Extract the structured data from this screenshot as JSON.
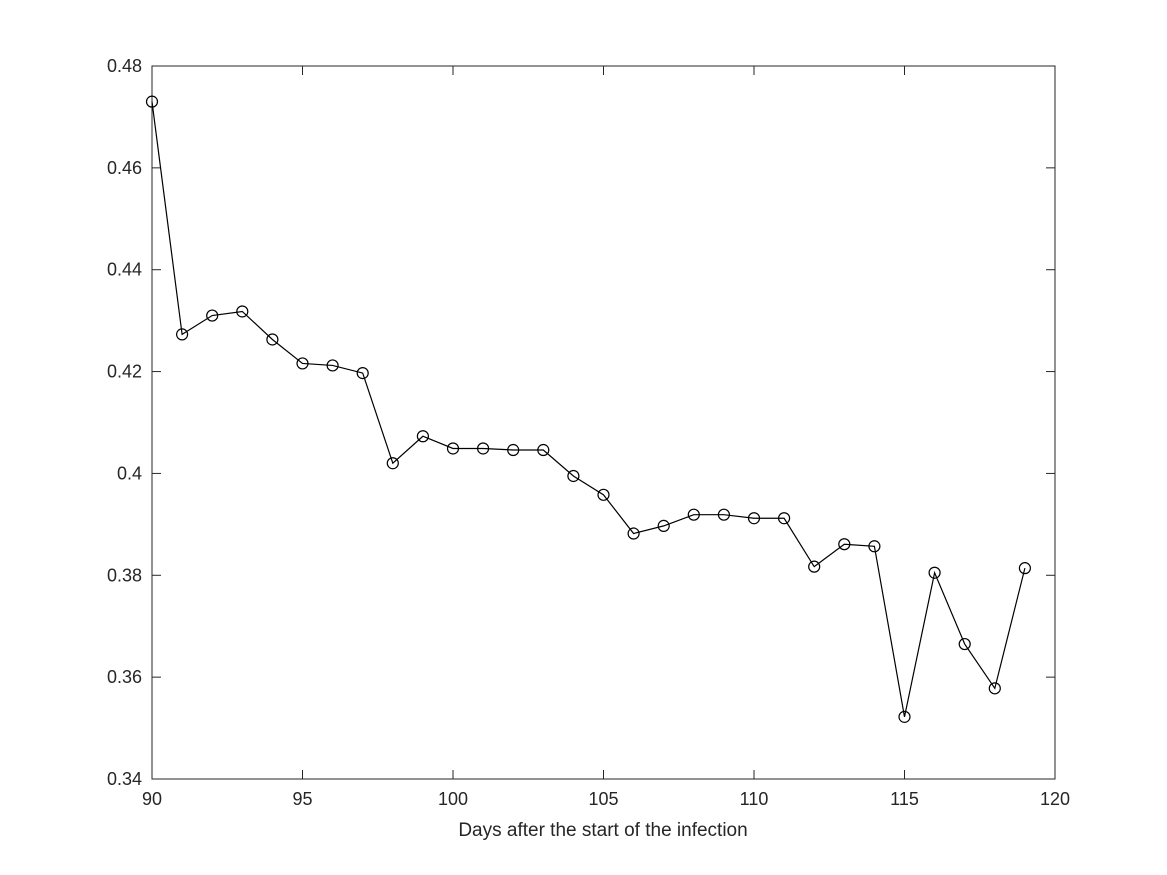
{
  "chart_data": {
    "type": "line",
    "title": "",
    "xlabel": "Days after the start of the infection",
    "ylabel": "",
    "xlim": [
      90,
      120
    ],
    "ylim": [
      0.34,
      0.48
    ],
    "xticks": [
      "90",
      "95",
      "100",
      "105",
      "110",
      "115",
      "120"
    ],
    "yticks": [
      "0.34",
      "0.36",
      "0.38",
      "0.4",
      "0.42",
      "0.44",
      "0.46",
      "0.48"
    ],
    "grid": false,
    "marker": "circle",
    "line_color": "#000000",
    "series": [
      {
        "x": [
          90,
          91,
          92,
          93,
          94,
          95,
          96,
          97,
          98,
          99,
          100,
          101,
          102,
          103,
          104,
          105,
          106,
          107,
          108,
          109,
          110,
          111,
          112,
          113,
          114,
          115,
          116,
          117,
          118,
          119
        ],
        "values": [
          0.473,
          0.4273,
          0.431,
          0.4318,
          0.4263,
          0.4216,
          0.4212,
          0.4197,
          0.402,
          0.4073,
          0.4049,
          0.4049,
          0.4046,
          0.4046,
          0.3995,
          0.3958,
          0.3882,
          0.3897,
          0.3919,
          0.3919,
          0.3912,
          0.3912,
          0.3817,
          0.3861,
          0.3857,
          0.3522,
          0.3805,
          0.3665,
          0.3578,
          0.3814
        ]
      }
    ]
  }
}
